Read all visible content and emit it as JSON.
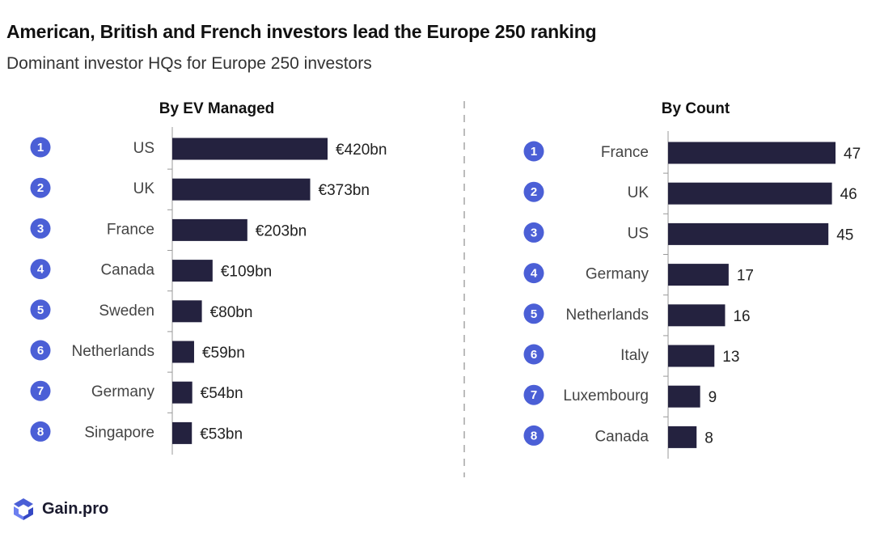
{
  "title": "American, British and French investors lead the Europe 250 ranking",
  "subtitle": "Dominant investor HQs for Europe 250 investors",
  "brand": {
    "name": "Gain.pro"
  },
  "colors": {
    "bar": "#24223f",
    "badge": "#4b5fd6",
    "axis": "#999999",
    "divider": "#bbbbbb"
  },
  "chart_data": [
    {
      "type": "bar",
      "orientation": "horizontal",
      "title": "By EV Managed",
      "ranks": [
        "1",
        "2",
        "3",
        "4",
        "5",
        "6",
        "7",
        "8"
      ],
      "categories": [
        "US",
        "UK",
        "France",
        "Canada",
        "Sweden",
        "Netherlands",
        "Germany",
        "Singapore"
      ],
      "values": [
        420,
        373,
        203,
        109,
        80,
        59,
        54,
        53
      ],
      "value_labels": [
        "€420bn",
        "€373bn",
        "€203bn",
        "€109bn",
        "€80bn",
        "€59bn",
        "€54bn",
        "€53bn"
      ],
      "unit": "€bn",
      "grid": false,
      "legend": "none"
    },
    {
      "type": "bar",
      "orientation": "horizontal",
      "title": "By  Count",
      "ranks": [
        "1",
        "2",
        "3",
        "4",
        "5",
        "6",
        "7",
        "8"
      ],
      "categories": [
        "France",
        "UK",
        "US",
        "Germany",
        "Netherlands",
        "Italy",
        "Luxembourg",
        "Canada"
      ],
      "values": [
        47,
        46,
        45,
        17,
        16,
        13,
        9,
        8
      ],
      "value_labels": [
        "47",
        "46",
        "45",
        "17",
        "16",
        "13",
        "9",
        "8"
      ],
      "grid": false,
      "legend": "none"
    }
  ]
}
